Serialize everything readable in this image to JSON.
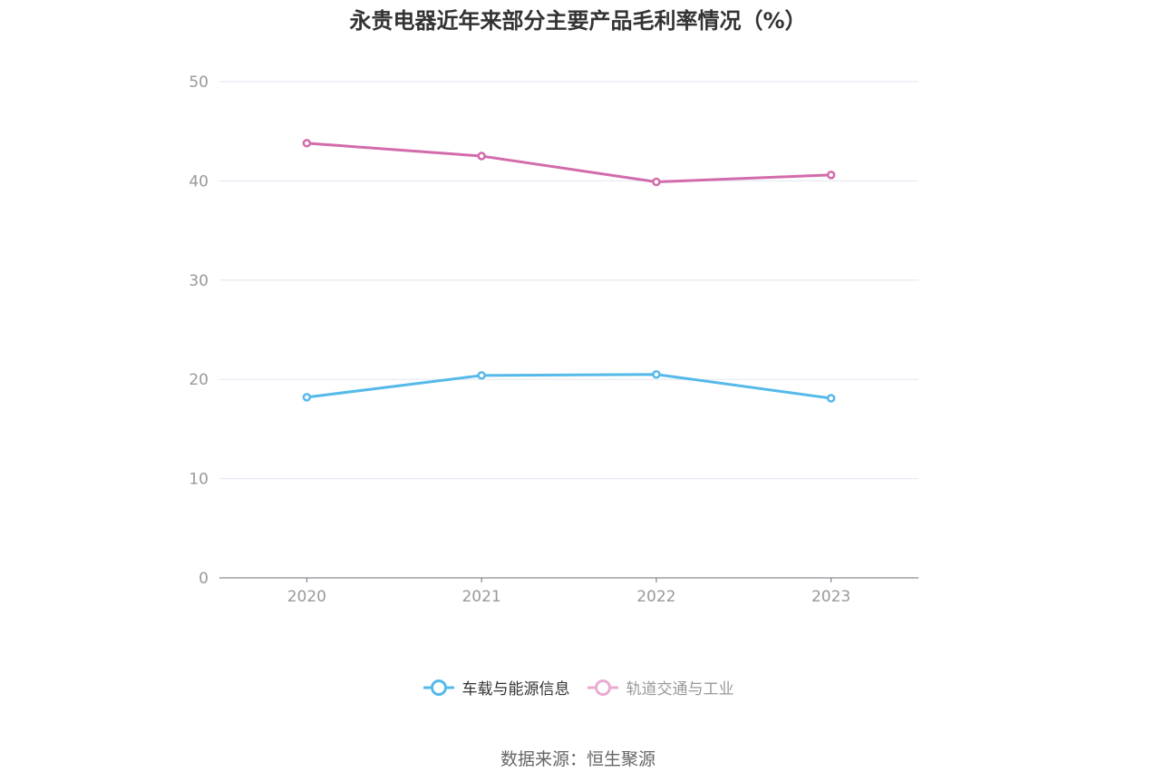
{
  "chart_data": {
    "type": "line",
    "title": "永贵电器近年来部分主要产品毛利率情况（%）",
    "categories": [
      "2020",
      "2021",
      "2022",
      "2023"
    ],
    "ylim": [
      0,
      50
    ],
    "yticks": [
      "0",
      "10",
      "20",
      "30",
      "40",
      "50"
    ],
    "grid": true,
    "legend_position": "bottom",
    "series": [
      {
        "name": "车载与能源信息",
        "color": "#55b9ea",
        "values": [
          18.2,
          20.4,
          20.5,
          18.1
        ]
      },
      {
        "name": "轨道交通与工业",
        "color": "#d26bab",
        "values": [
          43.8,
          42.5,
          39.9,
          40.6
        ]
      }
    ]
  },
  "source": "数据来源：恒生聚源"
}
